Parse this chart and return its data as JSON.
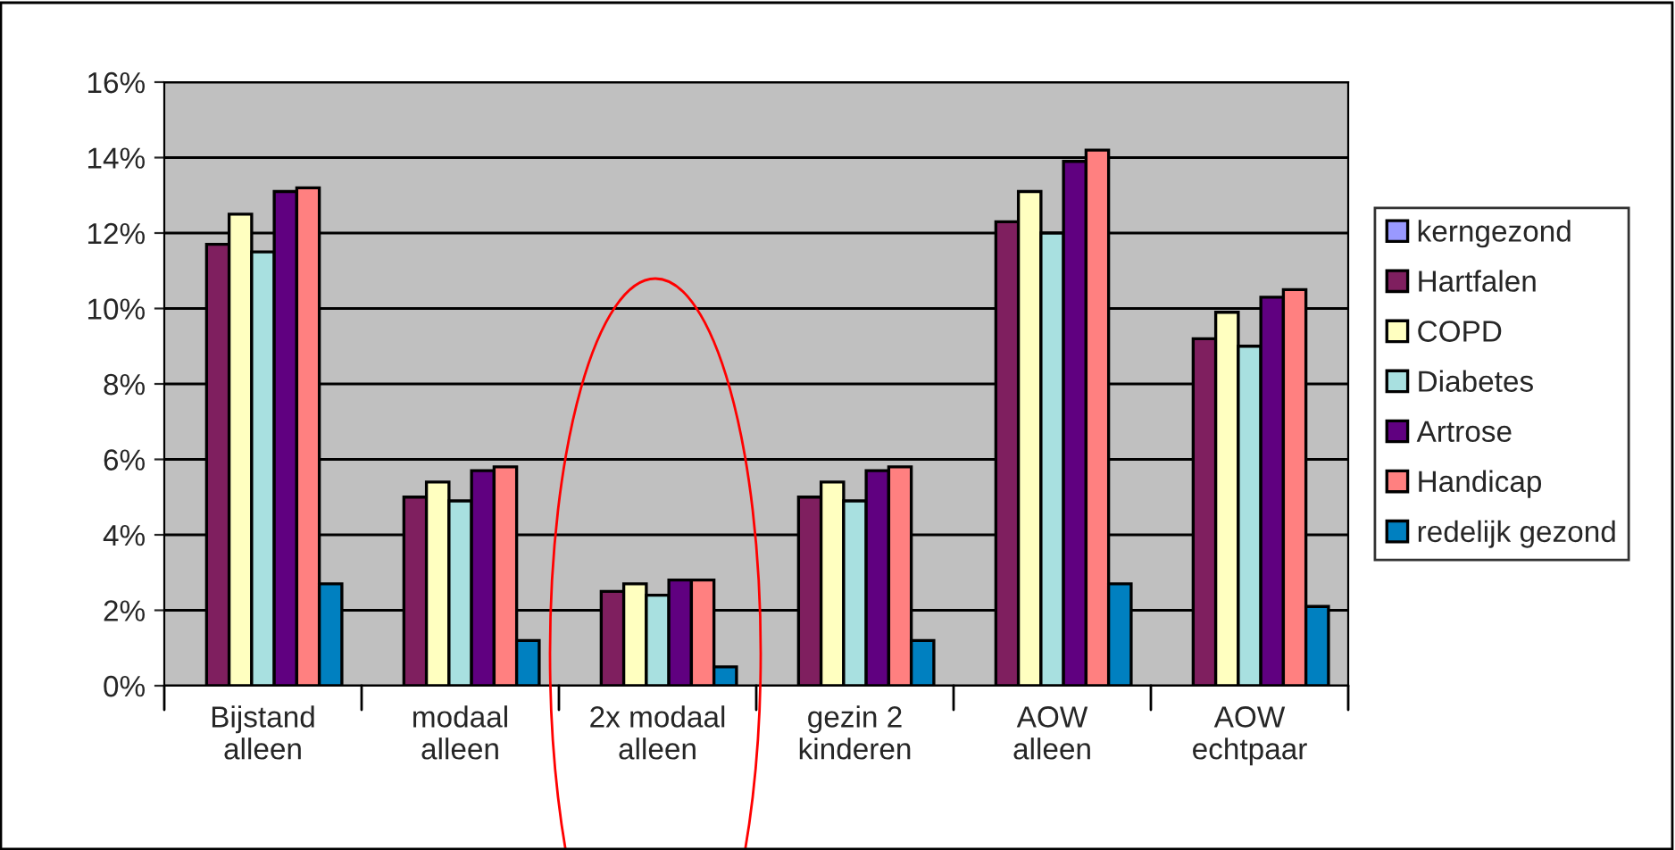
{
  "chart_data": {
    "type": "bar",
    "categories": [
      "Bijstand\nalleen",
      "modaal\nalleen",
      "2x modaal\nalleen",
      "gezin 2\nkinderen",
      "AOW\nalleen",
      "AOW\nechtpaar"
    ],
    "series": [
      {
        "name": "kerngezond",
        "color": "#9999ff",
        "values": [
          null,
          null,
          null,
          null,
          null,
          null
        ]
      },
      {
        "name": "Hartfalen",
        "color": "#7f1f5f",
        "values": [
          11.7,
          5.0,
          2.5,
          5.0,
          12.3,
          9.2
        ]
      },
      {
        "name": "COPD",
        "color": "#ffffc0",
        "values": [
          12.5,
          5.4,
          2.7,
          5.4,
          13.1,
          9.9
        ]
      },
      {
        "name": "Diabetes",
        "color": "#a8e0e0",
        "values": [
          11.5,
          4.9,
          2.4,
          4.9,
          12.0,
          9.0
        ]
      },
      {
        "name": "Artrose",
        "color": "#600080",
        "values": [
          13.1,
          5.7,
          2.8,
          5.7,
          13.9,
          10.3
        ]
      },
      {
        "name": "Handicap",
        "color": "#ff8080",
        "values": [
          13.2,
          5.8,
          2.8,
          5.8,
          14.2,
          10.5
        ]
      },
      {
        "name": "redelijk gezond",
        "color": "#0080c0",
        "values": [
          2.7,
          1.2,
          0.5,
          1.2,
          2.7,
          2.1
        ]
      }
    ],
    "ylim": [
      0,
      16
    ],
    "yticks": [
      {
        "value": 0,
        "label": "0%"
      },
      {
        "value": 2,
        "label": "2%"
      },
      {
        "value": 4,
        "label": "4%"
      },
      {
        "value": 6,
        "label": "6%"
      },
      {
        "value": 8,
        "label": "8%"
      },
      {
        "value": 10,
        "label": "10%"
      },
      {
        "value": 12,
        "label": "12%"
      },
      {
        "value": 14,
        "label": "14%"
      },
      {
        "value": 16,
        "label": "16%"
      }
    ],
    "grid": "y",
    "legend": "right"
  }
}
